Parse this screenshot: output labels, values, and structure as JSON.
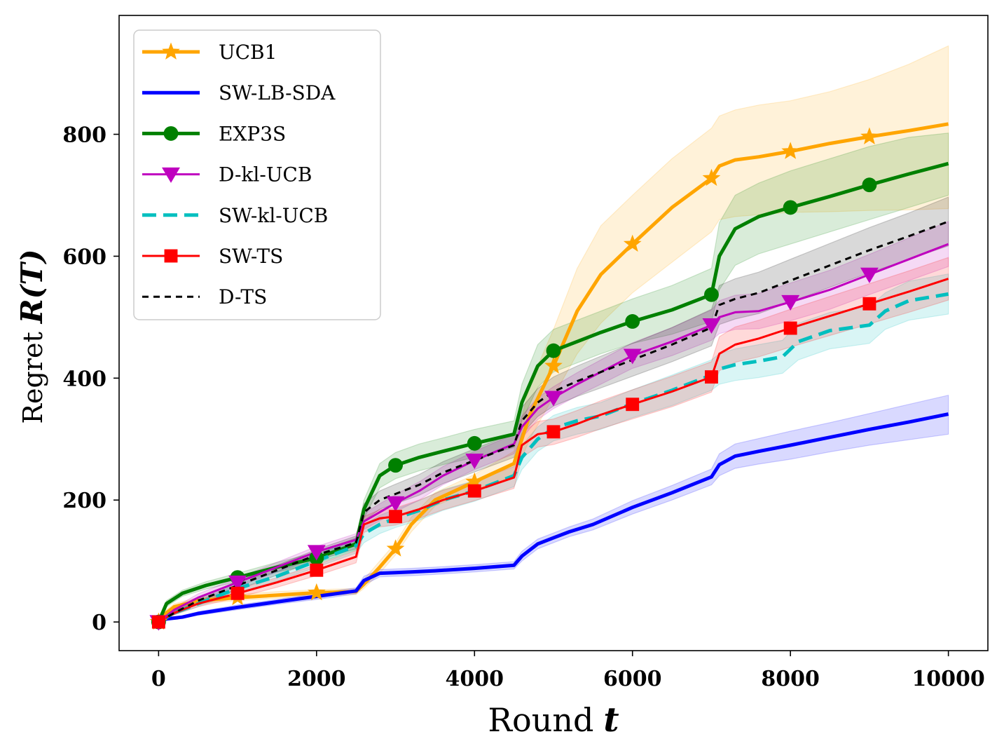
{
  "chart_data": {
    "type": "line",
    "xlabel_text": "Round",
    "xlabel_var": "t",
    "ylabel_text": "Regret",
    "ylabel_var": "R(T)",
    "xlim": [
      -500,
      10500
    ],
    "ylim": [
      -47,
      995
    ],
    "xticks": [
      0,
      2000,
      4000,
      6000,
      8000,
      10000
    ],
    "yticks": [
      0,
      200,
      400,
      600,
      800
    ],
    "grid": false,
    "legend_position": "top-left",
    "series": [
      {
        "name": "UCB1",
        "color": "#ffa500",
        "dash": "solid",
        "marker": "star",
        "width": 5,
        "x": [
          0,
          100,
          200,
          500,
          1000,
          1500,
          2000,
          2500,
          2600,
          2800,
          3000,
          3200,
          3500,
          4000,
          4500,
          4700,
          5000,
          5300,
          5600,
          6000,
          6500,
          7000,
          7100,
          7300,
          7600,
          8000,
          8500,
          9000,
          9500,
          10000
        ],
        "y": [
          0,
          15,
          25,
          35,
          40,
          44,
          48,
          50,
          62,
          90,
          120,
          160,
          200,
          230,
          260,
          340,
          420,
          510,
          570,
          620,
          680,
          728,
          748,
          758,
          763,
          772,
          785,
          796,
          806,
          817
        ],
        "lower": [
          0,
          10,
          20,
          30,
          35,
          39,
          43,
          45,
          55,
          80,
          110,
          148,
          190,
          218,
          240,
          300,
          370,
          440,
          490,
          540,
          590,
          640,
          660,
          665,
          668,
          672,
          673,
          675,
          676,
          678
        ],
        "upper": [
          0,
          20,
          30,
          40,
          45,
          50,
          53,
          55,
          70,
          100,
          130,
          172,
          212,
          242,
          280,
          390,
          480,
          580,
          650,
          700,
          760,
          810,
          830,
          840,
          848,
          855,
          870,
          890,
          915,
          945
        ],
        "markers_x": [
          0,
          1000,
          2000,
          3000,
          4000,
          5000,
          6000,
          7000,
          8000,
          9000
        ],
        "markers_y": [
          0,
          40,
          48,
          120,
          230,
          420,
          620,
          728,
          772,
          796
        ]
      },
      {
        "name": "SW-LB-SDA",
        "color": "#0000ff",
        "dash": "solid",
        "marker": "none",
        "width": 5,
        "x": [
          0,
          100,
          300,
          500,
          1000,
          1500,
          2000,
          2500,
          2600,
          2800,
          3000,
          3200,
          3500,
          4000,
          4500,
          4600,
          4800,
          5000,
          5200,
          5500,
          6000,
          6500,
          7000,
          7100,
          7300,
          7600,
          8000,
          8500,
          9000,
          9500,
          10000
        ],
        "y": [
          0,
          5,
          8,
          14,
          24,
          33,
          42,
          51,
          68,
          80,
          81,
          82,
          84,
          88,
          93,
          108,
          128,
          138,
          148,
          160,
          188,
          212,
          238,
          258,
          272,
          280,
          290,
          303,
          316,
          328,
          341
        ],
        "lower": [
          0,
          4,
          6,
          11,
          20,
          29,
          37,
          46,
          61,
          74,
          75,
          76,
          78,
          82,
          87,
          100,
          120,
          130,
          140,
          151,
          177,
          200,
          225,
          240,
          252,
          259,
          267,
          279,
          290,
          299,
          308
        ],
        "upper": [
          0,
          6,
          10,
          17,
          28,
          37,
          47,
          56,
          75,
          86,
          87,
          88,
          90,
          94,
          99,
          116,
          136,
          146,
          156,
          169,
          199,
          224,
          251,
          276,
          292,
          301,
          313,
          327,
          342,
          357,
          372
        ],
        "markers_x": [],
        "markers_y": []
      },
      {
        "name": "EXP3S",
        "color": "#008000",
        "dash": "solid",
        "marker": "circle",
        "width": 5,
        "x": [
          0,
          100,
          300,
          600,
          1000,
          1500,
          2000,
          2500,
          2600,
          2800,
          3000,
          3300,
          3600,
          4000,
          4500,
          4600,
          4800,
          5000,
          5300,
          5600,
          6000,
          6500,
          7000,
          7100,
          7300,
          7600,
          8000,
          8500,
          9000,
          9500,
          10000
        ],
        "y": [
          0,
          30,
          47,
          60,
          73,
          90,
          105,
          128,
          185,
          240,
          257,
          270,
          280,
          293,
          308,
          360,
          420,
          445,
          460,
          475,
          493,
          512,
          537,
          600,
          645,
          665,
          680,
          698,
          717,
          735,
          752
        ],
        "lower": [
          0,
          25,
          42,
          54,
          66,
          82,
          96,
          118,
          170,
          220,
          235,
          248,
          258,
          270,
          286,
          330,
          385,
          410,
          425,
          440,
          457,
          472,
          493,
          545,
          585,
          604,
          620,
          640,
          660,
          680,
          700
        ],
        "upper": [
          0,
          35,
          52,
          66,
          80,
          98,
          114,
          138,
          200,
          260,
          278,
          292,
          302,
          316,
          330,
          390,
          455,
          480,
          495,
          510,
          530,
          552,
          580,
          655,
          700,
          720,
          740,
          760,
          780,
          795,
          802
        ],
        "markers_x": [
          0,
          1000,
          2000,
          3000,
          4000,
          5000,
          6000,
          7000,
          8000,
          9000
        ],
        "markers_y": [
          0,
          73,
          105,
          257,
          293,
          445,
          493,
          537,
          680,
          717
        ]
      },
      {
        "name": "D-kl-UCB",
        "color": "#bf00bf",
        "dash": "solid",
        "marker": "triangle-down",
        "width": 3,
        "x": [
          0,
          200,
          500,
          1000,
          1500,
          2000,
          2500,
          2600,
          2800,
          3000,
          3300,
          3600,
          4000,
          4500,
          4600,
          4800,
          5000,
          5300,
          5600,
          6000,
          6500,
          7000,
          7100,
          7300,
          7600,
          8000,
          8500,
          9000,
          9500,
          10000
        ],
        "y": [
          0,
          20,
          40,
          65,
          90,
          115,
          135,
          165,
          180,
          195,
          215,
          240,
          265,
          292,
          320,
          350,
          368,
          390,
          410,
          437,
          460,
          487,
          500,
          508,
          510,
          525,
          545,
          570,
          595,
          620
        ],
        "lower": [
          0,
          16,
          34,
          58,
          82,
          106,
          125,
          152,
          166,
          181,
          200,
          225,
          250,
          276,
          302,
          332,
          350,
          371,
          390,
          416,
          437,
          462,
          473,
          480,
          481,
          494,
          513,
          537,
          560,
          583
        ],
        "upper": [
          0,
          24,
          46,
          72,
          98,
          124,
          145,
          178,
          194,
          209,
          230,
          255,
          280,
          308,
          338,
          368,
          386,
          409,
          430,
          458,
          483,
          512,
          527,
          536,
          539,
          556,
          577,
          603,
          630,
          657
        ],
        "markers_x": [
          0,
          1000,
          2000,
          3000,
          4000,
          5000,
          6000,
          7000,
          8000,
          9000
        ],
        "markers_y": [
          0,
          65,
          115,
          195,
          265,
          368,
          437,
          487,
          525,
          570
        ]
      },
      {
        "name": "SW-kl-UCB",
        "color": "#00bfbf",
        "dash": "dashed",
        "marker": "none",
        "width": 5,
        "x": [
          0,
          200,
          500,
          1000,
          1500,
          2000,
          2500,
          2600,
          2800,
          3000,
          3300,
          3600,
          4000,
          4500,
          4600,
          4800,
          5000,
          5300,
          5600,
          6000,
          6500,
          7000,
          7100,
          7300,
          7600,
          7900,
          8100,
          8500,
          9000,
          9200,
          9500,
          10000
        ],
        "y": [
          0,
          15,
          30,
          55,
          75,
          100,
          125,
          145,
          160,
          170,
          183,
          200,
          215,
          240,
          270,
          300,
          318,
          330,
          338,
          358,
          380,
          405,
          415,
          422,
          428,
          435,
          460,
          478,
          487,
          510,
          527,
          538
        ],
        "lower": [
          0,
          12,
          25,
          48,
          67,
          90,
          113,
          130,
          145,
          155,
          167,
          183,
          198,
          222,
          250,
          280,
          297,
          308,
          316,
          335,
          355,
          380,
          390,
          396,
          401,
          408,
          430,
          448,
          457,
          480,
          495,
          505
        ],
        "upper": [
          0,
          18,
          35,
          62,
          83,
          110,
          137,
          160,
          175,
          185,
          199,
          217,
          232,
          258,
          290,
          320,
          339,
          352,
          360,
          381,
          405,
          430,
          440,
          448,
          455,
          462,
          490,
          508,
          517,
          540,
          559,
          571
        ],
        "markers_x": [],
        "markers_y": []
      },
      {
        "name": "SW-TS",
        "color": "#ff0000",
        "dash": "solid",
        "marker": "square",
        "width": 3,
        "x": [
          0,
          200,
          500,
          1000,
          1500,
          2000,
          2500,
          2600,
          2800,
          3000,
          3300,
          3600,
          4000,
          4500,
          4600,
          4800,
          5000,
          5300,
          5600,
          6000,
          6500,
          7000,
          7100,
          7300,
          7600,
          8000,
          8500,
          9000,
          9500,
          10000
        ],
        "y": [
          0,
          15,
          30,
          47,
          65,
          85,
          107,
          160,
          170,
          173,
          185,
          200,
          215,
          237,
          290,
          308,
          312,
          325,
          340,
          357,
          378,
          402,
          440,
          455,
          465,
          482,
          502,
          522,
          542,
          563
        ],
        "lower": [
          0,
          12,
          25,
          40,
          57,
          76,
          97,
          147,
          156,
          159,
          170,
          184,
          199,
          219,
          270,
          287,
          291,
          303,
          317,
          333,
          353,
          377,
          412,
          426,
          435,
          451,
          470,
          489,
          508,
          528
        ],
        "upper": [
          0,
          18,
          35,
          54,
          73,
          94,
          117,
          173,
          184,
          187,
          200,
          216,
          231,
          255,
          310,
          329,
          333,
          347,
          363,
          381,
          403,
          427,
          468,
          484,
          495,
          513,
          534,
          555,
          576,
          598
        ],
        "markers_x": [
          0,
          1000,
          2000,
          3000,
          4000,
          5000,
          6000,
          7000,
          8000,
          9000
        ],
        "markers_y": [
          0,
          47,
          85,
          173,
          215,
          312,
          357,
          402,
          482,
          522
        ]
      },
      {
        "name": "D-TS",
        "color": "#000000",
        "dash": "dotted",
        "marker": "none",
        "width": 3,
        "x": [
          0,
          200,
          500,
          1000,
          1500,
          2000,
          2500,
          2600,
          2800,
          3000,
          3300,
          3600,
          4000,
          4500,
          4600,
          4800,
          5000,
          5300,
          5600,
          6000,
          6500,
          7000,
          7100,
          7300,
          7600,
          8000,
          8500,
          9000,
          9500,
          10000
        ],
        "y": [
          0,
          15,
          35,
          60,
          85,
          110,
          130,
          180,
          200,
          210,
          225,
          245,
          265,
          290,
          330,
          360,
          378,
          395,
          410,
          430,
          455,
          483,
          520,
          530,
          540,
          560,
          585,
          610,
          633,
          657
        ],
        "lower": [
          0,
          12,
          30,
          53,
          77,
          101,
          120,
          166,
          185,
          194,
          208,
          227,
          246,
          270,
          308,
          337,
          354,
          370,
          384,
          403,
          427,
          453,
          488,
          497,
          506,
          525,
          549,
          573,
          595,
          617
        ],
        "upper": [
          0,
          18,
          40,
          67,
          93,
          119,
          141,
          194,
          215,
          226,
          242,
          263,
          284,
          310,
          352,
          383,
          402,
          420,
          436,
          457,
          483,
          513,
          552,
          563,
          574,
          595,
          621,
          647,
          671,
          697
        ],
        "markers_x": [],
        "markers_y": []
      }
    ]
  }
}
